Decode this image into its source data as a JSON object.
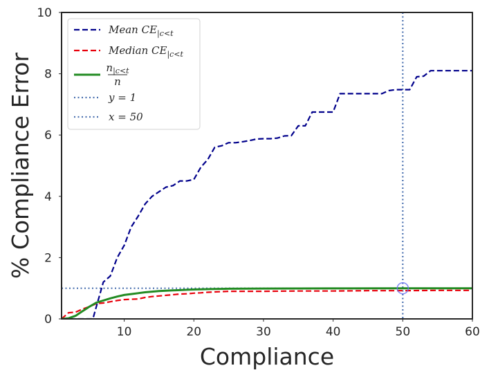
{
  "chart_data": {
    "type": "line",
    "xlabel": "Compliance",
    "ylabel": "% Compliance Error",
    "xlim": [
      1,
      60
    ],
    "ylim": [
      0,
      10
    ],
    "xticks": [
      10,
      20,
      30,
      40,
      50,
      60
    ],
    "yticks": [
      0,
      2,
      4,
      6,
      8,
      10
    ],
    "grid": false,
    "legend_position": "top-left",
    "series": [
      {
        "name": "Mean CE|c<t",
        "legend_main": "Mean CE",
        "legend_sub": "|c<t",
        "color": "#00008b",
        "style": "dashed",
        "x": [
          1,
          5,
          5.5,
          6,
          7,
          8,
          9,
          10,
          11,
          12,
          13,
          14,
          15,
          16,
          17,
          18,
          19,
          20,
          21,
          22,
          23,
          24,
          25,
          26,
          27,
          28,
          29,
          30,
          31,
          32,
          33,
          34,
          35,
          36,
          37,
          38,
          39,
          40,
          41,
          42,
          43,
          44,
          45,
          46,
          47,
          48,
          49,
          50,
          51,
          52,
          53,
          54,
          55,
          56,
          57,
          58,
          59,
          60
        ],
        "y": [
          0,
          0,
          0,
          0.4,
          1.2,
          1.4,
          2.0,
          2.4,
          3.0,
          3.35,
          3.75,
          4.0,
          4.15,
          4.3,
          4.35,
          4.5,
          4.5,
          4.55,
          4.95,
          5.2,
          5.6,
          5.65,
          5.75,
          5.75,
          5.78,
          5.82,
          5.87,
          5.88,
          5.88,
          5.9,
          5.97,
          5.98,
          6.3,
          6.3,
          6.75,
          6.75,
          6.75,
          6.75,
          7.35,
          7.35,
          7.35,
          7.35,
          7.35,
          7.35,
          7.35,
          7.45,
          7.48,
          7.48,
          7.48,
          7.9,
          7.92,
          8.1,
          8.1,
          8.1,
          8.1,
          8.1,
          8.1,
          8.1
        ]
      },
      {
        "name": "Median CE|c<t",
        "legend_main": "Median CE",
        "legend_sub": "|c<t",
        "color": "#e8000b",
        "style": "dashed",
        "x": [
          1,
          2,
          3,
          4,
          5,
          6,
          7,
          8,
          9,
          10,
          11,
          12,
          13,
          14,
          15,
          16,
          17,
          18,
          19,
          20,
          21,
          22,
          23,
          24,
          25,
          30,
          35,
          40,
          45,
          50,
          55,
          60
        ],
        "y": [
          0,
          0.2,
          0.22,
          0.32,
          0.4,
          0.5,
          0.52,
          0.56,
          0.6,
          0.63,
          0.64,
          0.65,
          0.7,
          0.73,
          0.75,
          0.77,
          0.79,
          0.81,
          0.82,
          0.84,
          0.85,
          0.87,
          0.88,
          0.89,
          0.9,
          0.9,
          0.91,
          0.91,
          0.92,
          0.92,
          0.93,
          0.93
        ]
      },
      {
        "name": "n|c<t / n",
        "legend_num": "n",
        "legend_num_sub": "|c<t",
        "legend_den": "n",
        "color": "#228b22",
        "style": "solid",
        "x": [
          1,
          2,
          3,
          4,
          5,
          6,
          7,
          8,
          9,
          10,
          11,
          12,
          13,
          14,
          15,
          16,
          17,
          18,
          19,
          20,
          21,
          22,
          23,
          24,
          25,
          30,
          40,
          50,
          60
        ],
        "y": [
          0,
          0.02,
          0.1,
          0.25,
          0.4,
          0.53,
          0.6,
          0.67,
          0.73,
          0.78,
          0.81,
          0.84,
          0.87,
          0.89,
          0.91,
          0.92,
          0.93,
          0.94,
          0.95,
          0.96,
          0.965,
          0.97,
          0.975,
          0.98,
          0.985,
          0.99,
          0.995,
          0.998,
          1.0
        ]
      },
      {
        "name": "y = 1",
        "legend_label": "y = 1",
        "color": "#4c72b0",
        "style": "dotted",
        "kind": "hline",
        "value": 1
      },
      {
        "name": "x = 50",
        "legend_label": "x = 50",
        "color": "#4c72b0",
        "style": "dotted",
        "kind": "vline",
        "value": 50
      }
    ],
    "marker": {
      "x": 50,
      "y": 1,
      "color": "#6a73f5",
      "shape": "circle"
    }
  }
}
